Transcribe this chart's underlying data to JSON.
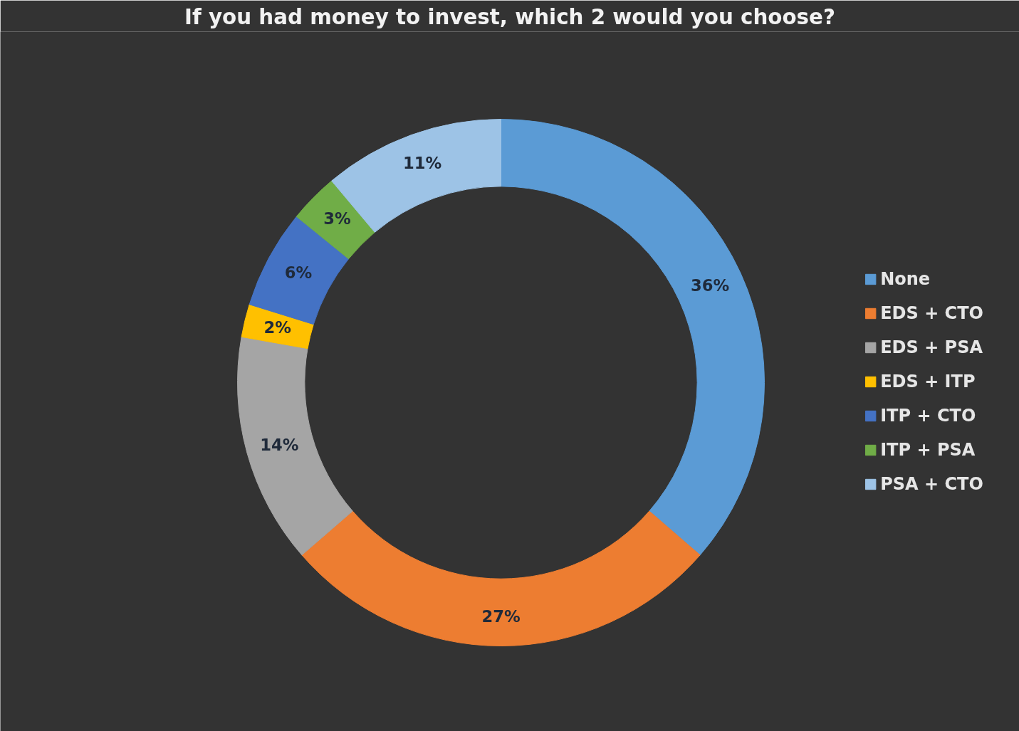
{
  "chart_data": {
    "type": "donut",
    "title": "If you had money to invest, which 2 would you choose?",
    "categories": [
      "None",
      "EDS + CTO",
      "EDS + PSA",
      "EDS + ITP",
      "ITP + CTO",
      "ITP + PSA",
      "PSA + CTO"
    ],
    "values": [
      36,
      27,
      14,
      2,
      6,
      3,
      11
    ],
    "colors": [
      "#5b9bd5",
      "#ed7d31",
      "#a5a5a5",
      "#ffc000",
      "#4472c4",
      "#70ad47",
      "#9dc3e6"
    ],
    "value_labels": [
      "36%",
      "27%",
      "14%",
      "2%",
      "6%",
      "3%",
      "11%"
    ],
    "legend": "right"
  }
}
